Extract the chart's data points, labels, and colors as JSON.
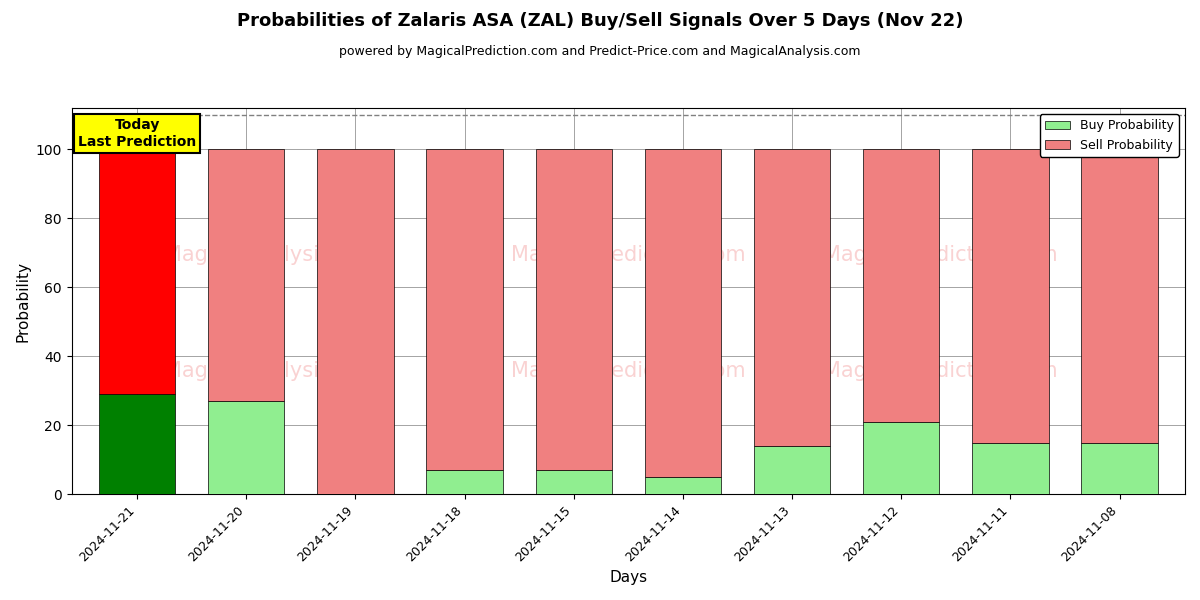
{
  "title": "Probabilities of Zalaris ASA (ZAL) Buy/Sell Signals Over 5 Days (Nov 22)",
  "subtitle": "powered by MagicalPrediction.com and Predict-Price.com and MagicalAnalysis.com",
  "xlabel": "Days",
  "ylabel": "Probability",
  "categories": [
    "2024-11-21",
    "2024-11-20",
    "2024-11-19",
    "2024-11-18",
    "2024-11-15",
    "2024-11-14",
    "2024-11-13",
    "2024-11-12",
    "2024-11-11",
    "2024-11-08"
  ],
  "buy_values": [
    29,
    27,
    0,
    7,
    7,
    5,
    14,
    21,
    15,
    15
  ],
  "sell_values": [
    71,
    73,
    100,
    93,
    93,
    95,
    86,
    79,
    85,
    85
  ],
  "today_buy_color": "#008000",
  "today_sell_color": "#FF0000",
  "buy_color": "#90EE90",
  "sell_color": "#F08080",
  "today_label_bg": "#FFFF00",
  "today_label_text": "Today\nLast Prediction",
  "legend_buy": "Buy Probability",
  "legend_sell": "Sell Probability",
  "ylim": [
    0,
    112
  ],
  "dashed_line_y": 110,
  "bar_width": 0.7,
  "watermark_color": "#F08080",
  "watermark_alpha": 0.35
}
